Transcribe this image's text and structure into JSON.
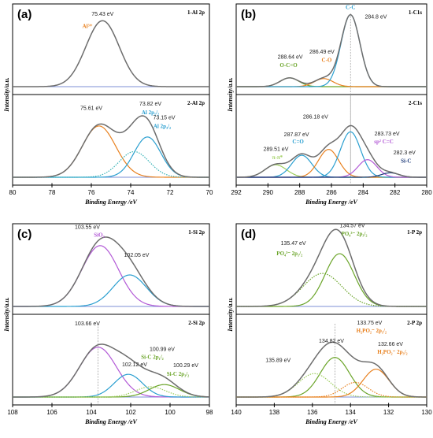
{
  "colors": {
    "envelope": "#6d6d6d",
    "baseline": "#7c8fd6",
    "orange": "#e8801e",
    "blue": "#2a9fd0",
    "teal": "#37b3b7",
    "purple": "#b259d6",
    "green": "#6aa428",
    "ltgreen": "#9ccd5a",
    "darkblue": "#1d3a7a"
  },
  "chart_data": [
    {
      "type": "line",
      "panel": "(a)",
      "xlabel": "Binding Energy /eV",
      "ylabel": "Intensity/a.u.",
      "xlim": [
        80,
        70
      ],
      "x_ticks": [
        "80",
        "78",
        "76",
        "74",
        "72",
        "70"
      ],
      "subplots": [
        {
          "title": "1-Al 2p",
          "series": [
            {
              "color": "envelope",
              "style": "solid",
              "peaks": [
                {
                  "center": 75.43,
                  "height": 0.9,
                  "fwhm": 2.0
                }
              ]
            }
          ],
          "annotations": [
            {
              "text": "75.43 eV",
              "x": 75.43,
              "y": 0.97
            },
            {
              "text": "Al³⁺",
              "x": 76.2,
              "y": 0.8,
              "color": "orange"
            }
          ],
          "vlines": []
        },
        {
          "title": "2-Al 2p",
          "series": [
            {
              "color": "orange",
              "style": "solid",
              "peaks": [
                {
                  "center": 75.61,
                  "height": 0.7,
                  "fwhm": 2.0
                }
              ]
            },
            {
              "color": "blue",
              "style": "solid",
              "peaks": [
                {
                  "center": 73.15,
                  "height": 0.55,
                  "fwhm": 1.6
                }
              ]
            },
            {
              "color": "teal",
              "style": "dotted",
              "peaks": [
                {
                  "center": 73.82,
                  "height": 0.35,
                  "fwhm": 1.8
                }
              ]
            },
            {
              "color": "envelope",
              "style": "solid",
              "peaks": [
                {
                  "center": 75.61,
                  "height": 0.7,
                  "fwhm": 2.0
                },
                {
                  "center": 73.82,
                  "height": 0.35,
                  "fwhm": 1.8
                },
                {
                  "center": 73.15,
                  "height": 0.55,
                  "fwhm": 1.6
                }
              ]
            }
          ],
          "annotations": [
            {
              "text": "75.61 eV",
              "x": 76.0,
              "y": 0.92
            },
            {
              "text": "73.82 eV",
              "x": 73.0,
              "y": 0.98
            },
            {
              "text": "Al 2p₁/₂",
              "x": 73.0,
              "y": 0.86,
              "color": "blue"
            },
            {
              "text": "73.15 eV",
              "x": 72.3,
              "y": 0.79
            },
            {
              "text": "Al 2p₃/₂",
              "x": 72.4,
              "y": 0.67,
              "color": "blue"
            }
          ],
          "vlines": []
        }
      ]
    },
    {
      "type": "line",
      "panel": "(b)",
      "xlabel": "Binding Energy /eV",
      "ylabel": "Intensity/a.u.",
      "xlim": [
        292,
        280
      ],
      "x_ticks": [
        "292",
        "290",
        "288",
        "286",
        "284",
        "282",
        "280"
      ],
      "subplots": [
        {
          "title": "1-C1s",
          "series": [
            {
              "color": "green",
              "style": "solid",
              "peaks": [
                {
                  "center": 288.64,
                  "height": 0.12,
                  "fwhm": 1.4
                }
              ]
            },
            {
              "color": "orange",
              "style": "solid",
              "peaks": [
                {
                  "center": 286.49,
                  "height": 0.11,
                  "fwhm": 1.4
                }
              ]
            },
            {
              "color": "blue",
              "style": "solid",
              "peaks": [
                {
                  "center": 284.8,
                  "height": 0.98,
                  "fwhm": 1.4
                }
              ]
            },
            {
              "color": "envelope",
              "style": "solid",
              "peaks": [
                {
                  "center": 288.64,
                  "height": 0.12,
                  "fwhm": 1.4
                },
                {
                  "center": 286.49,
                  "height": 0.11,
                  "fwhm": 1.4
                },
                {
                  "center": 284.8,
                  "height": 0.98,
                  "fwhm": 1.4
                }
              ]
            }
          ],
          "annotations": [
            {
              "text": "C-C",
              "x": 284.8,
              "y": 1.06,
              "color": "blue"
            },
            {
              "text": "284.8 eV",
              "x": 283.2,
              "y": 0.93
            },
            {
              "text": "288.64 eV",
              "x": 288.6,
              "y": 0.38
            },
            {
              "text": "O-C=O",
              "x": 288.7,
              "y": 0.27,
              "color": "green"
            },
            {
              "text": "286.49 eV",
              "x": 286.6,
              "y": 0.45
            },
            {
              "text": "C-O",
              "x": 286.3,
              "y": 0.34,
              "color": "orange"
            }
          ],
          "vlines": [
            {
              "x": 284.8,
              "to": "below"
            }
          ]
        },
        {
          "title": "2-C1s",
          "series": [
            {
              "color": "ltgreen",
              "style": "solid",
              "peaks": [
                {
                  "center": 289.51,
                  "height": 0.17,
                  "fwhm": 1.6
                }
              ]
            },
            {
              "color": "blue",
              "style": "solid",
              "peaks": [
                {
                  "center": 287.87,
                  "height": 0.3,
                  "fwhm": 1.5
                }
              ]
            },
            {
              "color": "orange",
              "style": "solid",
              "peaks": [
                {
                  "center": 286.18,
                  "height": 0.38,
                  "fwhm": 1.5
                }
              ]
            },
            {
              "color": "blue",
              "style": "solid",
              "peaks": [
                {
                  "center": 284.8,
                  "height": 0.62,
                  "fwhm": 1.5
                }
              ]
            },
            {
              "color": "purple",
              "style": "solid",
              "peaks": [
                {
                  "center": 283.73,
                  "height": 0.24,
                  "fwhm": 1.4
                }
              ]
            },
            {
              "color": "darkblue",
              "style": "solid",
              "peaks": [
                {
                  "center": 282.3,
                  "height": 0.06,
                  "fwhm": 1.3
                }
              ]
            },
            {
              "color": "envelope",
              "style": "solid",
              "peaks": [
                {
                  "center": 289.51,
                  "height": 0.17,
                  "fwhm": 1.6
                },
                {
                  "center": 287.87,
                  "height": 0.3,
                  "fwhm": 1.5
                },
                {
                  "center": 286.18,
                  "height": 0.38,
                  "fwhm": 1.5
                },
                {
                  "center": 284.8,
                  "height": 0.62,
                  "fwhm": 1.5
                },
                {
                  "center": 283.73,
                  "height": 0.24,
                  "fwhm": 1.4
                },
                {
                  "center": 282.3,
                  "height": 0.06,
                  "fwhm": 1.3
                }
              ]
            }
          ],
          "annotations": [
            {
              "text": "286.18 eV",
              "x": 287.0,
              "y": 0.8
            },
            {
              "text": "287.87 eV",
              "x": 288.2,
              "y": 0.56
            },
            {
              "text": "C=O",
              "x": 288.1,
              "y": 0.46,
              "color": "blue"
            },
            {
              "text": "289.51 eV",
              "x": 289.5,
              "y": 0.36
            },
            {
              "text": "π-π*",
              "x": 289.4,
              "y": 0.25,
              "color": "ltgreen"
            },
            {
              "text": "283.73 eV",
              "x": 282.5,
              "y": 0.57
            },
            {
              "text": "sp² C=C",
              "x": 282.7,
              "y": 0.46,
              "color": "purple"
            },
            {
              "text": "282.3 eV",
              "x": 281.4,
              "y": 0.31
            },
            {
              "text": "Si-C",
              "x": 281.3,
              "y": 0.2,
              "color": "darkblue"
            }
          ],
          "vlines": [
            {
              "x": 284.8,
              "to": "above"
            }
          ]
        }
      ]
    },
    {
      "type": "line",
      "panel": "(c)",
      "xlabel": "Binding Energy /eV",
      "ylabel": "Intensity/a.u.",
      "xlim": [
        108,
        98
      ],
      "x_ticks": [
        "108",
        "106",
        "104",
        "102",
        "100",
        "98"
      ],
      "subplots": [
        {
          "title": "1-Si 2p",
          "series": [
            {
              "color": "purple",
              "style": "solid",
              "peaks": [
                {
                  "center": 103.55,
                  "height": 0.83,
                  "fwhm": 2.2
                }
              ]
            },
            {
              "color": "blue",
              "style": "solid",
              "peaks": [
                {
                  "center": 102.05,
                  "height": 0.43,
                  "fwhm": 2.0
                }
              ]
            },
            {
              "color": "envelope",
              "style": "solid",
              "peaks": [
                {
                  "center": 103.55,
                  "height": 0.83,
                  "fwhm": 2.2
                },
                {
                  "center": 102.05,
                  "height": 0.43,
                  "fwhm": 2.0
                }
              ]
            }
          ],
          "annotations": [
            {
              "text": "103.55 eV",
              "x": 104.2,
              "y": 1.06
            },
            {
              "text": "SiO₂",
              "x": 103.6,
              "y": 0.95,
              "color": "purple"
            },
            {
              "text": "102.05 eV",
              "x": 101.7,
              "y": 0.68
            }
          ],
          "vlines": []
        },
        {
          "title": "2-Si 2p",
          "series": [
            {
              "color": "purple",
              "style": "solid",
              "peaks": [
                {
                  "center": 103.66,
                  "height": 0.68,
                  "fwhm": 2.2
                }
              ]
            },
            {
              "color": "blue",
              "style": "solid",
              "peaks": [
                {
                  "center": 102.12,
                  "height": 0.31,
                  "fwhm": 1.7
                }
              ]
            },
            {
              "color": "green",
              "style": "solid",
              "peaks": [
                {
                  "center": 100.29,
                  "height": 0.17,
                  "fwhm": 1.8
                }
              ]
            },
            {
              "color": "ltgreen",
              "style": "dotted",
              "peaks": [
                {
                  "center": 100.99,
                  "height": 0.14,
                  "fwhm": 1.8
                }
              ]
            },
            {
              "color": "envelope",
              "style": "solid",
              "peaks": [
                {
                  "center": 103.66,
                  "height": 0.68,
                  "fwhm": 2.2
                },
                {
                  "center": 102.12,
                  "height": 0.31,
                  "fwhm": 1.7
                },
                {
                  "center": 100.99,
                  "height": 0.14,
                  "fwhm": 1.8
                },
                {
                  "center": 100.29,
                  "height": 0.17,
                  "fwhm": 1.8
                }
              ]
            }
          ],
          "annotations": [
            {
              "text": "103.66 eV",
              "x": 104.2,
              "y": 0.98
            },
            {
              "text": "102.12 eV",
              "x": 101.8,
              "y": 0.42
            },
            {
              "text": "100.99 eV",
              "x": 100.4,
              "y": 0.63
            },
            {
              "text": "Si-C 2p₁/₂",
              "x": 100.9,
              "y": 0.52,
              "color": "green"
            },
            {
              "text": "100.29 eV",
              "x": 99.2,
              "y": 0.41
            },
            {
              "text": "Si-C 2p₃/₂",
              "x": 99.6,
              "y": 0.29,
              "color": "green"
            }
          ],
          "vlines": [
            {
              "x": 103.66,
              "to": "below"
            }
          ]
        }
      ]
    },
    {
      "type": "line",
      "panel": "(d)",
      "xlabel": "Binding Energy /eV",
      "ylabel": "Intensity/a.u.",
      "xlim": [
        140,
        130
      ],
      "x_ticks": [
        "140",
        "138",
        "136",
        "134",
        "132",
        "130"
      ],
      "subplots": [
        {
          "title": "1-P 2p",
          "series": [
            {
              "color": "green",
              "style": "solid",
              "peaks": [
                {
                  "center": 134.57,
                  "height": 0.72,
                  "fwhm": 1.8
                }
              ]
            },
            {
              "color": "green",
              "style": "dotted",
              "peaks": [
                {
                  "center": 135.47,
                  "height": 0.45,
                  "fwhm": 2.4
                }
              ]
            },
            {
              "color": "envelope",
              "style": "solid",
              "peaks": [
                {
                  "center": 134.57,
                  "height": 0.72,
                  "fwhm": 1.8
                },
                {
                  "center": 135.47,
                  "height": 0.45,
                  "fwhm": 2.4
                }
              ]
            }
          ],
          "annotations": [
            {
              "text": "134.57 eV",
              "x": 133.9,
              "y": 1.08
            },
            {
              "text": "PO₄³⁻ 2p₃/₂",
              "x": 133.8,
              "y": 0.97,
              "color": "green"
            },
            {
              "text": "135.47 eV",
              "x": 137.0,
              "y": 0.84
            },
            {
              "text": "PO₄³⁻ 2p₁/₂",
              "x": 137.2,
              "y": 0.7,
              "color": "green"
            }
          ],
          "vlines": []
        },
        {
          "title": "2-P 2p",
          "series": [
            {
              "color": "green",
              "style": "solid",
              "peaks": [
                {
                  "center": 134.82,
                  "height": 0.54,
                  "fwhm": 1.8
                }
              ]
            },
            {
              "color": "ltgreen",
              "style": "dotted",
              "peaks": [
                {
                  "center": 135.89,
                  "height": 0.32,
                  "fwhm": 2.0
                }
              ]
            },
            {
              "color": "orange",
              "style": "solid",
              "peaks": [
                {
                  "center": 132.66,
                  "height": 0.38,
                  "fwhm": 1.6
                }
              ]
            },
            {
              "color": "orange",
              "style": "dotted",
              "peaks": [
                {
                  "center": 133.75,
                  "height": 0.2,
                  "fwhm": 1.6
                }
              ]
            },
            {
              "color": "envelope",
              "style": "solid",
              "peaks": [
                {
                  "center": 134.82,
                  "height": 0.54,
                  "fwhm": 1.8
                },
                {
                  "center": 135.89,
                  "height": 0.32,
                  "fwhm": 2.0
                },
                {
                  "center": 132.66,
                  "height": 0.38,
                  "fwhm": 1.6
                },
                {
                  "center": 133.75,
                  "height": 0.2,
                  "fwhm": 1.6
                }
              ]
            }
          ],
          "annotations": [
            {
              "text": "134.82 eV",
              "x": 135.0,
              "y": 0.74
            },
            {
              "text": "133.75 eV",
              "x": 133.0,
              "y": 0.99
            },
            {
              "text": "H₂PO₂⁻ 2p₁/₂",
              "x": 132.9,
              "y": 0.88,
              "color": "orange"
            },
            {
              "text": "132.66 eV",
              "x": 131.9,
              "y": 0.7
            },
            {
              "text": "H₂PO₂⁻ 2p₃/₂",
              "x": 131.8,
              "y": 0.59,
              "color": "orange"
            },
            {
              "text": "135.89 eV",
              "x": 137.8,
              "y": 0.48
            }
          ],
          "vlines": [
            {
              "x": 134.82,
              "to": "below"
            }
          ]
        }
      ]
    }
  ]
}
